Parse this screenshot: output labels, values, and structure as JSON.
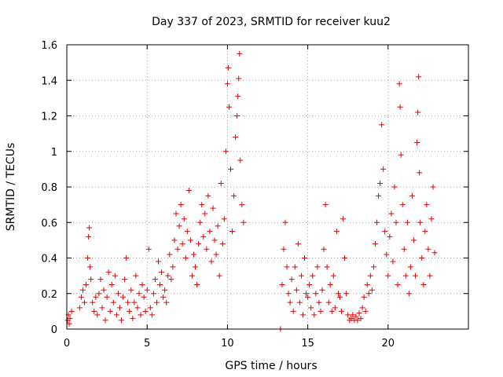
{
  "colors": {
    "series": "#e60000",
    "grid": "#a0a0a0",
    "axis": "#000000"
  },
  "chart_data": {
    "type": "scatter",
    "title": "Day 337 of 2023, SRMTID for receiver kuu2",
    "xlabel": "GPS time / hours",
    "ylabel": "SRMTID / TECUs",
    "xlim": [
      0,
      25
    ],
    "ylim": [
      0,
      1.6
    ],
    "xticks": [
      0,
      5,
      10,
      15,
      20
    ],
    "xtick_labels": [
      "0",
      "5",
      "10",
      "15",
      "20"
    ],
    "yticks": [
      0,
      0.2,
      0.4,
      0.6,
      0.8,
      1.0,
      1.2,
      1.4,
      1.6
    ],
    "ytick_labels": [
      "0",
      "0.2",
      "0.4",
      "0.6",
      "0.8",
      "1",
      "1.2",
      "1.4",
      "1.6"
    ],
    "grid": true,
    "marker": "+",
    "series": [
      {
        "name": "SRMTID",
        "points": [
          [
            0.05,
            0.05
          ],
          [
            0.1,
            0.08
          ],
          [
            0.15,
            0.03
          ],
          [
            0.2,
            0.06
          ],
          [
            0.3,
            0.1
          ],
          [
            0.8,
            0.12
          ],
          [
            0.9,
            0.18
          ],
          [
            1.0,
            0.22
          ],
          [
            1.1,
            0.15
          ],
          [
            1.2,
            0.25
          ],
          [
            1.3,
            0.4
          ],
          [
            1.35,
            0.52
          ],
          [
            1.4,
            0.57
          ],
          [
            1.45,
            0.35
          ],
          [
            1.5,
            0.28
          ],
          [
            1.6,
            0.15
          ],
          [
            1.7,
            0.1
          ],
          [
            1.8,
            0.18
          ],
          [
            1.9,
            0.08
          ],
          [
            2.0,
            0.2
          ],
          [
            2.1,
            0.28
          ],
          [
            2.2,
            0.12
          ],
          [
            2.3,
            0.22
          ],
          [
            2.4,
            0.05
          ],
          [
            2.5,
            0.18
          ],
          [
            2.6,
            0.32
          ],
          [
            2.7,
            0.1
          ],
          [
            2.8,
            0.25
          ],
          [
            2.9,
            0.15
          ],
          [
            3.0,
            0.3
          ],
          [
            3.1,
            0.08
          ],
          [
            3.2,
            0.2
          ],
          [
            3.3,
            0.12
          ],
          [
            3.4,
            0.05
          ],
          [
            3.5,
            0.18
          ],
          [
            3.6,
            0.28
          ],
          [
            3.7,
            0.4
          ],
          [
            3.8,
            0.15
          ],
          [
            3.9,
            0.1
          ],
          [
            4.0,
            0.22
          ],
          [
            4.1,
            0.06
          ],
          [
            4.2,
            0.15
          ],
          [
            4.3,
            0.3
          ],
          [
            4.4,
            0.12
          ],
          [
            4.5,
            0.2
          ],
          [
            4.6,
            0.08
          ],
          [
            4.7,
            0.25
          ],
          [
            4.8,
            0.18
          ],
          [
            4.9,
            0.1
          ],
          [
            5.0,
            0.22
          ],
          [
            5.1,
            0.45
          ],
          [
            5.2,
            0.12
          ],
          [
            5.3,
            0.08
          ],
          [
            5.4,
            0.2
          ],
          [
            5.5,
            0.28
          ],
          [
            5.6,
            0.15
          ],
          [
            5.7,
            0.38
          ],
          [
            5.8,
            0.25
          ],
          [
            5.9,
            0.32
          ],
          [
            6.0,
            0.18
          ],
          [
            6.1,
            0.22
          ],
          [
            6.2,
            0.15
          ],
          [
            6.3,
            0.3
          ],
          [
            6.4,
            0.42
          ],
          [
            6.5,
            0.28
          ],
          [
            6.6,
            0.35
          ],
          [
            6.7,
            0.5
          ],
          [
            6.8,
            0.65
          ],
          [
            6.9,
            0.45
          ],
          [
            7.0,
            0.58
          ],
          [
            7.1,
            0.7
          ],
          [
            7.2,
            0.48
          ],
          [
            7.3,
            0.62
          ],
          [
            7.4,
            0.4
          ],
          [
            7.5,
            0.55
          ],
          [
            7.6,
            0.78
          ],
          [
            7.7,
            0.5
          ],
          [
            7.8,
            0.3
          ],
          [
            7.9,
            0.42
          ],
          [
            8.0,
            0.35
          ],
          [
            8.1,
            0.25
          ],
          [
            8.2,
            0.48
          ],
          [
            8.3,
            0.6
          ],
          [
            8.4,
            0.7
          ],
          [
            8.5,
            0.52
          ],
          [
            8.6,
            0.65
          ],
          [
            8.7,
            0.45
          ],
          [
            8.8,
            0.75
          ],
          [
            8.9,
            0.55
          ],
          [
            9.0,
            0.38
          ],
          [
            9.1,
            0.68
          ],
          [
            9.2,
            0.5
          ],
          [
            9.3,
            0.42
          ],
          [
            9.4,
            0.58
          ],
          [
            9.5,
            0.3
          ],
          [
            9.6,
            0.82
          ],
          [
            9.7,
            0.48
          ],
          [
            9.8,
            0.62
          ],
          [
            9.9,
            1.0
          ],
          [
            10.0,
            1.38
          ],
          [
            10.05,
            1.47
          ],
          [
            10.1,
            1.25
          ],
          [
            10.2,
            0.9
          ],
          [
            10.3,
            0.55
          ],
          [
            10.4,
            0.75
          ],
          [
            10.5,
            1.08
          ],
          [
            10.6,
            1.2
          ],
          [
            10.65,
            1.31
          ],
          [
            10.7,
            1.41
          ],
          [
            10.75,
            1.55
          ],
          [
            10.8,
            0.95
          ],
          [
            10.9,
            0.7
          ],
          [
            11.0,
            0.6
          ],
          [
            13.3,
            0.0
          ],
          [
            13.4,
            0.25
          ],
          [
            13.5,
            0.45
          ],
          [
            13.6,
            0.6
          ],
          [
            13.7,
            0.35
          ],
          [
            13.8,
            0.2
          ],
          [
            13.9,
            0.15
          ],
          [
            14.0,
            0.28
          ],
          [
            14.1,
            0.1
          ],
          [
            14.2,
            0.35
          ],
          [
            14.3,
            0.22
          ],
          [
            14.4,
            0.48
          ],
          [
            14.5,
            0.15
          ],
          [
            14.6,
            0.3
          ],
          [
            14.7,
            0.08
          ],
          [
            14.8,
            0.4
          ],
          [
            14.9,
            0.2
          ],
          [
            15.0,
            0.18
          ],
          [
            15.1,
            0.25
          ],
          [
            15.2,
            0.12
          ],
          [
            15.3,
            0.3
          ],
          [
            15.4,
            0.08
          ],
          [
            15.5,
            0.2
          ],
          [
            15.6,
            0.35
          ],
          [
            15.7,
            0.15
          ],
          [
            15.8,
            0.1
          ],
          [
            15.9,
            0.22
          ],
          [
            16.0,
            0.45
          ],
          [
            16.1,
            0.7
          ],
          [
            16.2,
            0.35
          ],
          [
            16.3,
            0.15
          ],
          [
            16.4,
            0.25
          ],
          [
            16.5,
            0.1
          ],
          [
            16.6,
            0.3
          ],
          [
            16.7,
            0.12
          ],
          [
            16.8,
            0.55
          ],
          [
            16.9,
            0.2
          ],
          [
            17.0,
            0.18
          ],
          [
            17.1,
            0.1
          ],
          [
            17.2,
            0.62
          ],
          [
            17.3,
            0.4
          ],
          [
            17.4,
            0.2
          ],
          [
            17.5,
            0.08
          ],
          [
            17.6,
            0.05
          ],
          [
            17.7,
            0.06
          ],
          [
            17.8,
            0.08
          ],
          [
            17.9,
            0.05
          ],
          [
            18.0,
            0.07
          ],
          [
            18.1,
            0.05
          ],
          [
            18.2,
            0.09
          ],
          [
            18.3,
            0.06
          ],
          [
            18.4,
            0.12
          ],
          [
            18.5,
            0.18
          ],
          [
            18.6,
            0.1
          ],
          [
            18.7,
            0.25
          ],
          [
            18.8,
            0.2
          ],
          [
            18.9,
            0.3
          ],
          [
            19.0,
            0.22
          ],
          [
            19.1,
            0.35
          ],
          [
            19.2,
            0.48
          ],
          [
            19.3,
            0.6
          ],
          [
            19.4,
            0.75
          ],
          [
            19.5,
            0.82
          ],
          [
            19.6,
            1.15
          ],
          [
            19.7,
            0.9
          ],
          [
            19.8,
            0.55
          ],
          [
            19.9,
            0.42
          ],
          [
            20.0,
            0.3
          ],
          [
            20.1,
            0.52
          ],
          [
            20.2,
            0.65
          ],
          [
            20.3,
            0.38
          ],
          [
            20.4,
            0.8
          ],
          [
            20.5,
            0.6
          ],
          [
            20.6,
            0.25
          ],
          [
            20.7,
            1.38
          ],
          [
            20.75,
            1.25
          ],
          [
            20.8,
            0.98
          ],
          [
            20.9,
            0.7
          ],
          [
            21.0,
            0.45
          ],
          [
            21.1,
            0.3
          ],
          [
            21.2,
            0.6
          ],
          [
            21.3,
            0.2
          ],
          [
            21.4,
            0.35
          ],
          [
            21.5,
            0.75
          ],
          [
            21.6,
            0.5
          ],
          [
            21.7,
            0.3
          ],
          [
            21.8,
            1.05
          ],
          [
            21.85,
            1.22
          ],
          [
            21.9,
            1.42
          ],
          [
            21.95,
            0.88
          ],
          [
            22.0,
            0.6
          ],
          [
            22.1,
            0.4
          ],
          [
            22.2,
            0.25
          ],
          [
            22.3,
            0.55
          ],
          [
            22.4,
            0.7
          ],
          [
            22.5,
            0.45
          ],
          [
            22.6,
            0.3
          ],
          [
            22.7,
            0.62
          ],
          [
            22.8,
            0.8
          ],
          [
            22.9,
            0.43
          ]
        ]
      }
    ]
  }
}
